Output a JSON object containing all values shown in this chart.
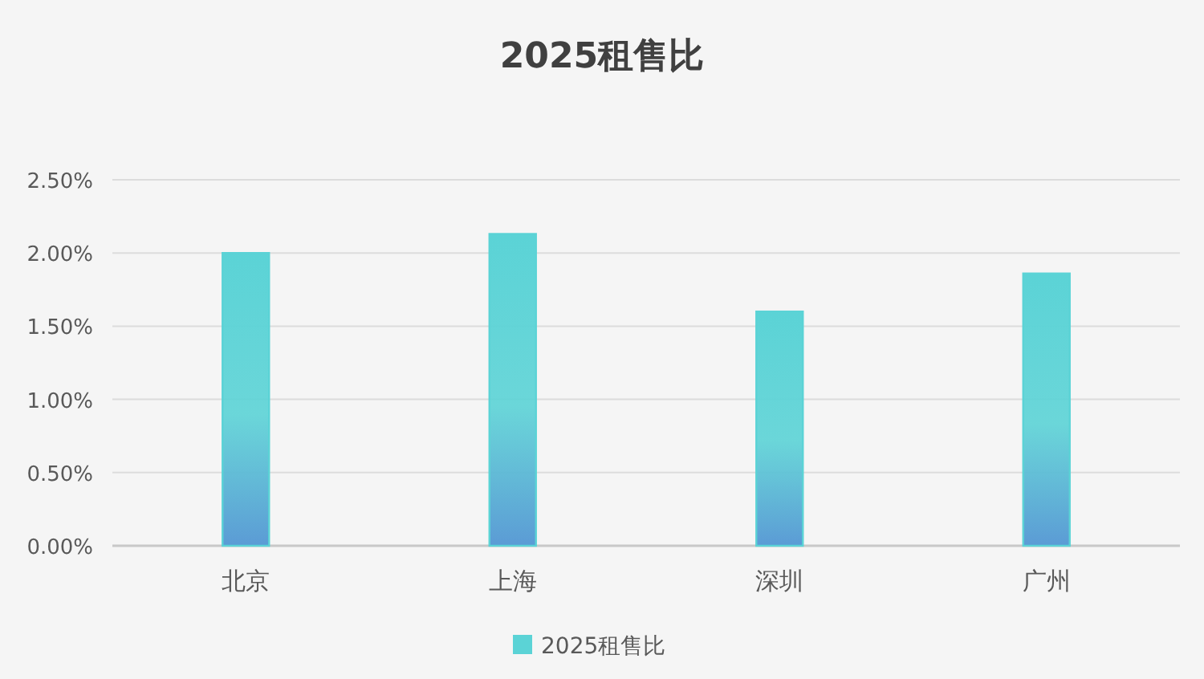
{
  "chart_data": {
    "type": "bar",
    "title": "2025租售比",
    "categories": [
      "北京",
      "上海",
      "深圳",
      "广州"
    ],
    "series": [
      {
        "name": "2025租售比",
        "color": "#5bd3d6",
        "values": [
          2.0,
          2.13,
          1.6,
          1.86
        ]
      }
    ],
    "ylim": [
      0,
      2.5
    ],
    "yticks": [
      {
        "value": 0,
        "label": "0.00%"
      },
      {
        "value": 0.5,
        "label": "0.50%"
      },
      {
        "value": 1,
        "label": "1.00%"
      },
      {
        "value": 1.5,
        "label": "1.50%"
      },
      {
        "value": 2,
        "label": "2.00%"
      },
      {
        "value": 2.5,
        "label": "2.50%"
      }
    ],
    "grid": "y",
    "legend": "bottom"
  }
}
